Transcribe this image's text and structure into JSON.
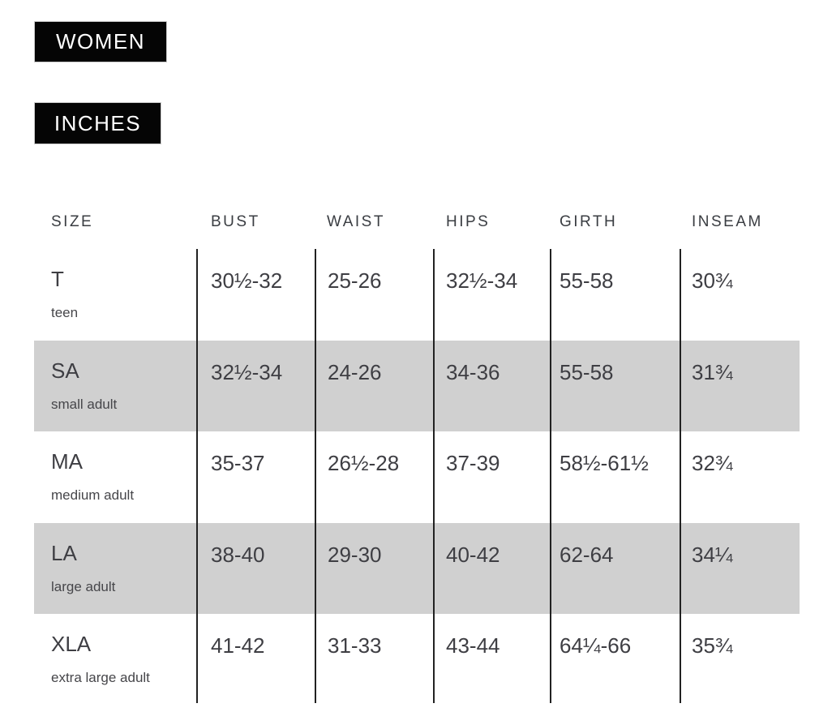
{
  "badges": {
    "gender": "WOMEN",
    "units": "INCHES"
  },
  "table": {
    "columns": [
      "SIZE",
      "BUST",
      "WAIST",
      "HIPS",
      "GIRTH",
      "INSEAM"
    ],
    "rows": [
      {
        "code": "T",
        "label": "teen",
        "bust": "30½-32",
        "waist": "25-26",
        "hips": "32½-34",
        "girth": "55-58",
        "inseam": "30¾",
        "shaded": false
      },
      {
        "code": "SA",
        "label": "small adult",
        "bust": "32½-34",
        "waist": "24-26",
        "hips": "34-36",
        "girth": "55-58",
        "inseam": "31¾",
        "shaded": true
      },
      {
        "code": "MA",
        "label": "medium adult",
        "bust": "35-37",
        "waist": "26½-28",
        "hips": "37-39",
        "girth": "58½-61½",
        "inseam": "32¾",
        "shaded": false
      },
      {
        "code": "LA",
        "label": "large adult",
        "bust": "38-40",
        "waist": "29-30",
        "hips": "40-42",
        "girth": "62-64",
        "inseam": "34¼",
        "shaded": true
      },
      {
        "code": "XLA",
        "label": "extra large adult",
        "bust": "41-42",
        "waist": "31-33",
        "hips": "43-44",
        "girth": "64¼-66",
        "inseam": "35¾",
        "shaded": false
      }
    ]
  },
  "colors": {
    "row_shade": "#d0d0d0",
    "badge_background": "#050505",
    "badge_text": "#ffffff",
    "body_text": "#3e3e43",
    "column_divider": "#222222",
    "page_background": "#ffffff"
  }
}
